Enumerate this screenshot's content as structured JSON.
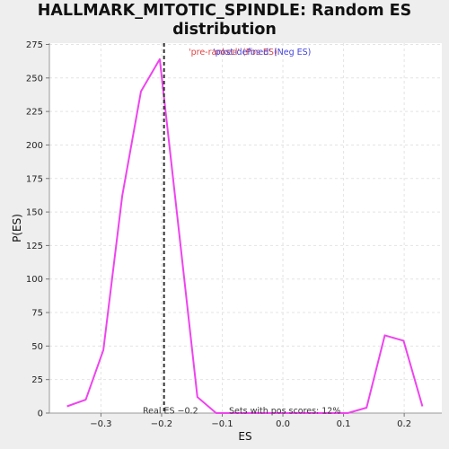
{
  "chart_data": {
    "type": "line",
    "title_lines": [
      "HALLMARK_MITOTIC_SPINDLE: Random ES",
      "distribution"
    ],
    "xlabel": "ES",
    "ylabel": "P(ES)",
    "xlim": [
      -0.385,
      0.262
    ],
    "ylim": [
      0,
      276
    ],
    "x_ticks": [
      -0.3,
      -0.2,
      -0.1,
      0.0,
      0.1,
      0.2
    ],
    "x_tick_labels": [
      "−0.3",
      "−0.2",
      "−0.1",
      "0.0",
      "0.1",
      "0.2"
    ],
    "y_ticks": [
      0,
      25,
      50,
      75,
      100,
      125,
      150,
      175,
      200,
      225,
      250,
      275
    ],
    "y_tick_labels": [
      "0",
      "25",
      "50",
      "75",
      "100",
      "125",
      "150",
      "175",
      "200",
      "225",
      "250",
      "275"
    ],
    "grid": true,
    "series": [
      {
        "color": "#ee44ee",
        "x": [
          -0.356,
          -0.325,
          -0.296,
          -0.265,
          -0.234,
          -0.203,
          -0.172,
          -0.141,
          -0.11,
          -0.079,
          -0.048,
          -0.017,
          0.014,
          0.045,
          0.076,
          0.107,
          0.138,
          0.168,
          0.199,
          0.23
        ],
        "y": [
          5,
          10,
          47,
          162,
          240,
          264,
          138,
          12,
          0,
          0,
          0,
          0,
          0,
          0,
          0,
          0,
          4,
          58,
          54,
          5
        ]
      }
    ],
    "real_es": -0.196,
    "annotations": {
      "pre_label": "'pre-ranked' (Pos ES)",
      "post_label": "'post-defined' (Neg ES)",
      "real_es_label": "Real ES −0.2",
      "pos_scores_label": "Sets with pos scores: 12%"
    },
    "colors": {
      "pre_label": "#dd4444",
      "post_label": "#4444dd",
      "real_es_line": "#333333",
      "annotation_text": "#333333"
    }
  }
}
